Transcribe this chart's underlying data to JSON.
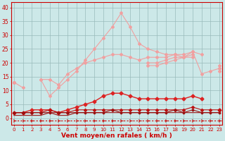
{
  "x": [
    0,
    1,
    2,
    3,
    4,
    5,
    6,
    7,
    8,
    9,
    10,
    11,
    12,
    13,
    14,
    15,
    16,
    17,
    18,
    19,
    20,
    21,
    22,
    23
  ],
  "line_peak": [
    13,
    11,
    null,
    14,
    8,
    11,
    14,
    17,
    21,
    25,
    29,
    33,
    38,
    33,
    27,
    25,
    24,
    23,
    23,
    22,
    24,
    16,
    17,
    18
  ],
  "line_mid1": [
    13,
    null,
    null,
    14,
    14,
    12,
    16,
    18,
    20,
    21,
    22,
    23,
    23,
    22,
    21,
    22,
    22,
    22,
    23,
    23,
    24,
    23,
    null,
    19
  ],
  "line_mid2": [
    13,
    null,
    null,
    null,
    null,
    null,
    null,
    null,
    null,
    null,
    null,
    null,
    null,
    null,
    null,
    20,
    20,
    21,
    22,
    22,
    23,
    null,
    null,
    18
  ],
  "line_mid3": [
    13,
    null,
    null,
    null,
    null,
    null,
    null,
    null,
    null,
    null,
    null,
    null,
    null,
    null,
    null,
    19,
    19,
    20,
    21,
    22,
    22,
    null,
    null,
    17
  ],
  "line_high": [
    2,
    2,
    3,
    3,
    3,
    2,
    3,
    4,
    5,
    6,
    8,
    9,
    9,
    8,
    7,
    7,
    7,
    7,
    7,
    7,
    8,
    7,
    null,
    3
  ],
  "line_med": [
    2,
    2,
    2,
    2,
    3,
    2,
    2,
    3,
    3,
    3,
    3,
    3,
    3,
    3,
    3,
    3,
    3,
    3,
    3,
    3,
    4,
    3,
    3,
    3
  ],
  "line_low1": [
    2,
    2,
    2,
    2,
    2,
    2,
    2,
    2,
    2,
    2,
    2,
    3,
    2,
    2,
    2,
    2,
    2,
    2,
    3,
    2,
    3,
    2,
    2,
    2
  ],
  "line_low2": [
    1,
    1,
    1,
    1,
    2,
    1,
    1,
    2,
    2,
    2,
    2,
    2,
    2,
    2,
    2,
    2,
    2,
    2,
    2,
    2,
    2,
    2,
    2,
    2
  ],
  "line_bot": [
    -1,
    -1,
    -1,
    -1,
    -1,
    -1,
    -1,
    -1,
    -1,
    -1,
    -1,
    -1,
    -1,
    -1,
    -1,
    -1,
    -1,
    -1,
    -1,
    -1,
    -1,
    -1,
    -1,
    -1
  ],
  "bg_color": "#cce8e8",
  "grid_color": "#99bbbb",
  "color_lpink": "#f0a0a0",
  "color_pink": "#e07070",
  "color_dred1": "#dd2222",
  "color_dred2": "#bb1111",
  "color_dred3": "#991111",
  "color_bot": "#cc0000",
  "xlabel": "Vent moyen/en rafales ( km/h )",
  "xlabel_color": "#cc0000",
  "tick_color": "#cc0000",
  "ylim": [
    -2.5,
    42
  ],
  "xlim": [
    -0.3,
    23.3
  ]
}
